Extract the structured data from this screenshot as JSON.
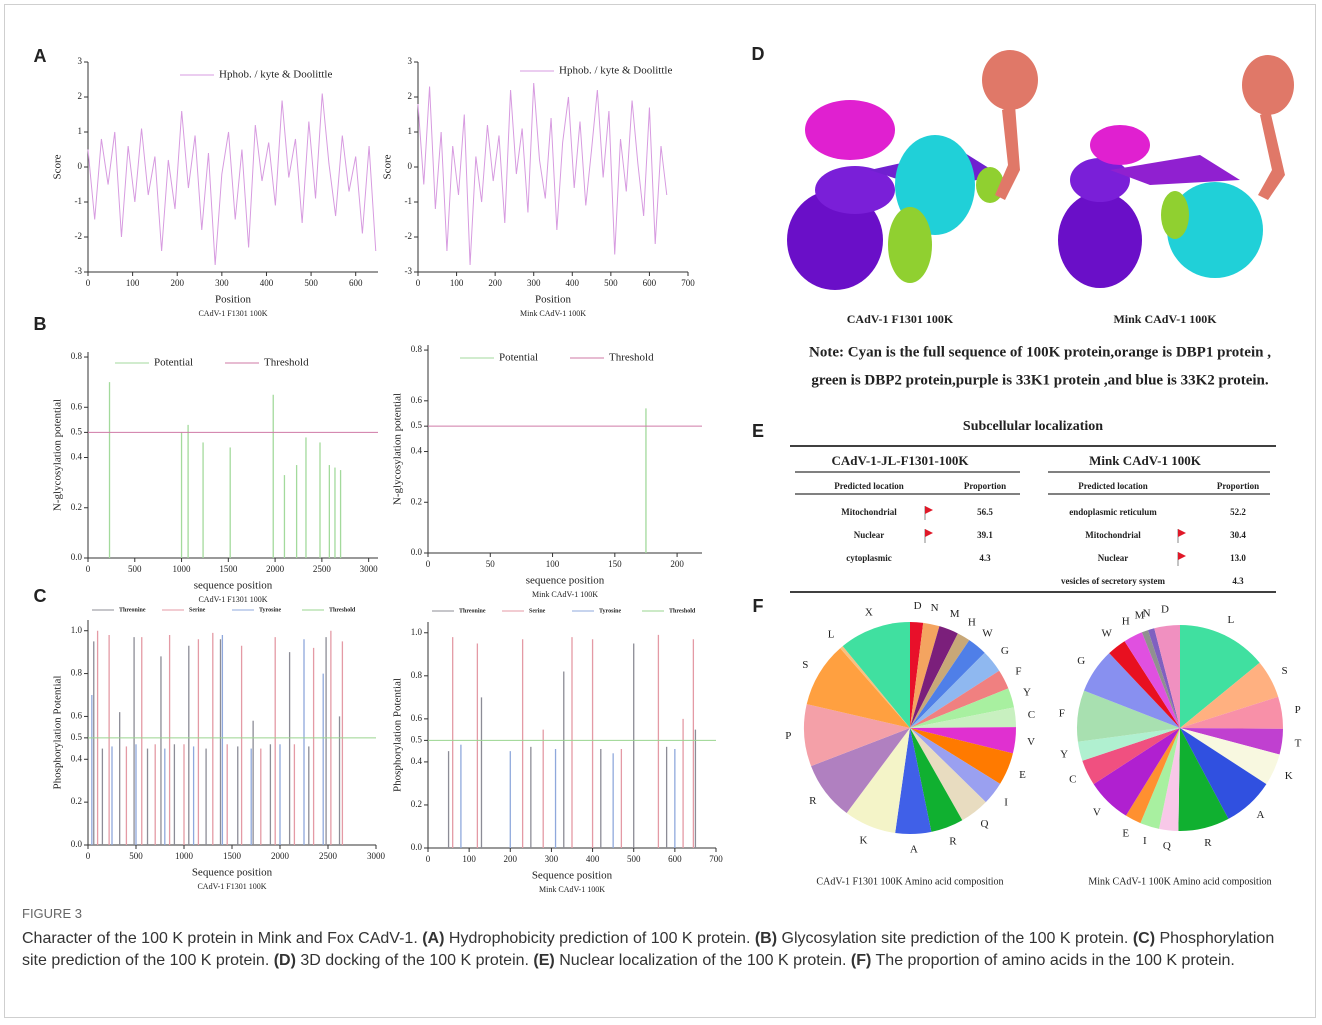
{
  "panel_labels": [
    "A",
    "B",
    "C",
    "D",
    "E",
    "F"
  ],
  "chart_data": [
    {
      "type": "line",
      "ylabel": "Score",
      "xlabel": "Position",
      "subtitle": "CAdV-1 F1301 100K",
      "xlim": [
        0,
        650
      ],
      "xticks": [
        0,
        100,
        200,
        300,
        400,
        500,
        600
      ],
      "ylim": [
        -3,
        3
      ],
      "yticks": [
        -3,
        -2,
        -1,
        0,
        1,
        2,
        3
      ],
      "x": [
        0,
        15,
        30,
        45,
        60,
        75,
        90,
        105,
        120,
        135,
        150,
        165,
        180,
        195,
        210,
        225,
        240,
        255,
        270,
        285,
        300,
        315,
        330,
        345,
        360,
        375,
        390,
        405,
        420,
        435,
        450,
        465,
        480,
        495,
        510,
        525,
        540,
        555,
        570,
        585,
        600,
        615,
        630,
        645
      ],
      "series": [
        {
          "name": "Hphob. / kyte & Doolittle",
          "color": "#d79be0",
          "values": [
            0.5,
            -1.5,
            0.8,
            -0.5,
            1.0,
            -2.0,
            0.6,
            -1.0,
            1.1,
            -0.8,
            0.3,
            -2.4,
            0.2,
            -1.2,
            1.6,
            -0.6,
            0.9,
            -1.8,
            0.4,
            -2.8,
            -0.2,
            1.0,
            -1.5,
            0.5,
            -2.3,
            1.2,
            -0.4,
            0.7,
            -1.1,
            1.9,
            -0.3,
            0.8,
            -1.6,
            1.3,
            -0.9,
            2.1,
            0.1,
            -1.4,
            0.9,
            -0.7,
            0.3,
            -1.9,
            0.6,
            -2.4
          ]
        }
      ]
    },
    {
      "type": "line",
      "ylabel": "Score",
      "xlabel": "Position",
      "subtitle": "Mink CAdV-1 100K",
      "xlim": [
        0,
        700
      ],
      "xticks": [
        0,
        100,
        200,
        300,
        400,
        500,
        600,
        700
      ],
      "ylim": [
        -3,
        3
      ],
      "yticks": [
        -3,
        -2,
        -1,
        0,
        1,
        2,
        3
      ],
      "x": [
        0,
        15,
        30,
        45,
        60,
        75,
        90,
        105,
        120,
        135,
        150,
        165,
        180,
        195,
        210,
        225,
        240,
        255,
        270,
        285,
        300,
        315,
        330,
        345,
        360,
        375,
        390,
        405,
        420,
        435,
        450,
        465,
        480,
        495,
        510,
        525,
        540,
        555,
        570,
        585,
        600,
        615,
        630,
        645
      ],
      "series": [
        {
          "name": "Hphob. / kyte & Doolittle",
          "color": "#d79be0",
          "values": [
            1.8,
            -0.5,
            2.3,
            -1.2,
            1.0,
            -2.4,
            0.6,
            -0.8,
            1.5,
            -2.8,
            0.3,
            -1.0,
            1.2,
            -0.4,
            0.9,
            -1.6,
            2.2,
            -0.2,
            1.1,
            -1.3,
            2.4,
            0.2,
            -0.9,
            1.4,
            -1.8,
            0.7,
            2.0,
            -0.6,
            1.3,
            -1.1,
            0.5,
            2.2,
            -0.3,
            1.6,
            -2.5,
            0.8,
            -0.7,
            1.9,
            0.1,
            -1.4,
            1.7,
            -2.2,
            0.6,
            -0.8
          ]
        }
      ]
    },
    {
      "type": "bar",
      "ylabel": "N-glycosylation potential",
      "xlabel": "sequence position",
      "subtitle": "CAdV-1 F1301 100K",
      "xlim": [
        0,
        3100
      ],
      "xticks": [
        0,
        500,
        1000,
        1500,
        2000,
        2500,
        3000
      ],
      "ylim": [
        0,
        0.82
      ],
      "yticks": [
        {
          "value": 0,
          "label": "0.0"
        },
        0.2,
        0.4,
        0.5,
        0.6,
        0.8
      ],
      "series": [
        {
          "name": "Potential",
          "color": "#a3da9c",
          "x": [
            230,
            1000,
            1070,
            1230,
            1520,
            1980,
            2100,
            2230,
            2330,
            2480,
            2580,
            2640,
            2700
          ],
          "values": [
            0.7,
            0.5,
            0.53,
            0.46,
            0.44,
            0.65,
            0.33,
            0.37,
            0.48,
            0.46,
            0.37,
            0.36,
            0.35
          ]
        }
      ],
      "threshold": {
        "name": "Threshold",
        "color": "#cf7aa6",
        "value": 0.5
      }
    },
    {
      "type": "bar",
      "ylabel": "N-glycosylation potential",
      "xlabel": "sequence position",
      "subtitle": "Mink CAdV-1 100K",
      "xlim": [
        0,
        220
      ],
      "xticks": [
        0,
        50,
        100,
        150,
        200
      ],
      "ylim": [
        0,
        0.82
      ],
      "yticks": [
        {
          "value": 0,
          "label": "0.0"
        },
        0.2,
        0.4,
        0.5,
        0.6,
        0.8
      ],
      "series": [
        {
          "name": "Potential",
          "color": "#a3da9c",
          "x": [
            175
          ],
          "values": [
            0.57
          ]
        }
      ],
      "threshold": {
        "name": "Threshold",
        "color": "#cf7aa6",
        "value": 0.5
      }
    },
    {
      "type": "bar",
      "ylabel": "Phosphorylation Potential",
      "xlabel": "Sequence position",
      "subtitle": "CAdV-1 F1301 100K",
      "xlim": [
        0,
        3000
      ],
      "xticks": [
        0,
        500,
        1000,
        1500,
        2000,
        2500,
        3000
      ],
      "ylim": [
        0,
        1.05
      ],
      "yticks": [
        {
          "value": 0,
          "label": "0.0"
        },
        0.2,
        0.4,
        0.5,
        0.6,
        0.8,
        {
          "value": 1,
          "label": "1.0"
        }
      ],
      "series": [
        {
          "name": "Threonine",
          "color": "#8c8c96",
          "x": [
            60,
            150,
            330,
            480,
            620,
            760,
            900,
            1050,
            1230,
            1380,
            1560,
            1720,
            1900,
            2100,
            2300,
            2480,
            2620
          ],
          "values": [
            0.95,
            0.45,
            0.62,
            0.97,
            0.45,
            0.88,
            0.47,
            0.93,
            0.45,
            0.96,
            0.46,
            0.58,
            0.47,
            0.9,
            0.46,
            0.97,
            0.6
          ]
        },
        {
          "name": "Serine",
          "color": "#e49aa5",
          "x": [
            100,
            220,
            400,
            560,
            700,
            850,
            1000,
            1150,
            1300,
            1450,
            1600,
            1800,
            1950,
            2150,
            2350,
            2530,
            2650
          ],
          "values": [
            1.0,
            0.98,
            0.46,
            0.97,
            0.47,
            0.98,
            0.47,
            0.96,
            0.99,
            0.47,
            0.93,
            0.45,
            0.97,
            0.47,
            0.92,
            1.0,
            0.95
          ]
        },
        {
          "name": "Tyrosine",
          "color": "#8fa8dc",
          "x": [
            40,
            250,
            500,
            800,
            1100,
            1400,
            1700,
            2000,
            2250,
            2450
          ],
          "values": [
            0.7,
            0.46,
            0.47,
            0.45,
            0.46,
            0.98,
            0.45,
            0.47,
            0.96,
            0.8
          ]
        }
      ],
      "threshold": {
        "name": "Threshold",
        "color": "#9ad48f",
        "value": 0.5
      }
    },
    {
      "type": "bar",
      "ylabel": "Phosphorylation Potential",
      "xlabel": "Sequence position",
      "subtitle": "Mink CAdV-1 100K",
      "xlim": [
        0,
        700
      ],
      "xticks": [
        0,
        100,
        200,
        300,
        400,
        500,
        600,
        700
      ],
      "ylim": [
        0,
        1.05
      ],
      "yticks": [
        {
          "value": 0,
          "label": "0.0"
        },
        0.2,
        0.4,
        0.5,
        0.6,
        0.8,
        {
          "value": 1,
          "label": "1.0"
        }
      ],
      "series": [
        {
          "name": "Threonine",
          "color": "#8c8c96",
          "x": [
            50,
            130,
            250,
            330,
            420,
            500,
            580,
            650
          ],
          "values": [
            0.45,
            0.7,
            0.47,
            0.82,
            0.46,
            0.95,
            0.47,
            0.55
          ]
        },
        {
          "name": "Serine",
          "color": "#e49aa5",
          "x": [
            60,
            120,
            230,
            280,
            350,
            400,
            470,
            560,
            620,
            645
          ],
          "values": [
            0.98,
            0.95,
            0.97,
            0.55,
            0.98,
            0.97,
            0.46,
            0.99,
            0.6,
            0.97
          ]
        },
        {
          "name": "Tyrosine",
          "color": "#8fa8dc",
          "x": [
            80,
            200,
            310,
            450,
            600
          ],
          "values": [
            0.48,
            0.45,
            0.46,
            0.44,
            0.46
          ]
        }
      ],
      "threshold": {
        "name": "Threshold",
        "color": "#9ad48f",
        "value": 0.5
      }
    },
    {
      "type": "pie",
      "subtitle": "CAdV-1 F1301 100K Amino acid composition",
      "categories": [
        "D",
        "N",
        "M",
        "H",
        "W",
        "G",
        "F",
        "Y",
        "C",
        "V",
        "E",
        "I",
        "Q",
        "R",
        "A",
        "K",
        "R",
        "P",
        "S",
        "L",
        "X"
      ],
      "values": [
        2,
        2.5,
        3,
        2,
        3,
        3.5,
        3,
        3,
        3,
        4,
        5,
        3.5,
        4.5,
        5,
        5.5,
        8,
        9,
        9.5,
        10,
        0.5,
        11
      ],
      "colors": [
        "#e8102a",
        "#f4a460",
        "#7b1f7b",
        "#c8a878",
        "#4f7fe8",
        "#8fb8f0",
        "#f08080",
        "#a8f0a0",
        "#c8f0c0",
        "#e030d0",
        "#ff7a00",
        "#9aa0f0",
        "#e8dcc0",
        "#10b030",
        "#4060e8",
        "#f4f4c8",
        "#b080c0",
        "#f4a0a8",
        "#ffa040",
        "#f8c080",
        "#40e0a0"
      ]
    },
    {
      "type": "pie",
      "subtitle": "Mink CAdV-1 100K Amino acid composition",
      "categories": [
        "L",
        "S",
        "P",
        "T",
        "K",
        "A",
        "R",
        "Q",
        "I",
        "E",
        "V",
        "C",
        "Y",
        "F",
        "G",
        "W",
        "H",
        "M",
        "N",
        "D"
      ],
      "values": [
        14,
        6,
        5,
        4,
        5,
        8,
        8,
        3,
        3,
        2.5,
        7,
        4,
        3,
        8,
        7,
        3,
        3,
        1,
        1,
        4
      ],
      "colors": [
        "#40e0a0",
        "#ffb080",
        "#f890a8",
        "#c040d0",
        "#f8f8e0",
        "#3050e0",
        "#10b030",
        "#f8c8e8",
        "#a8f0a0",
        "#ff9030",
        "#b020d0",
        "#f05080",
        "#b0f0d0",
        "#a8e0b0",
        "#8890f0",
        "#e81020",
        "#e050e0",
        "#909090",
        "#8060c0",
        "#f090c0"
      ]
    }
  ],
  "docking": {
    "labels": [
      "CAdV-1 F1301 100K",
      "Mink CAdV-1 100K"
    ],
    "note": [
      "Note: Cyan is the full sequence of 100K protein,orange is DBP1 protein ,",
      "green is DBP2 protein,purple is 33K1 protein ,and blue is 33K2 protein."
    ]
  },
  "table": {
    "title": "Subcellular localization",
    "groups": [
      {
        "name": "CAdV-1-JL-F1301-100K",
        "columns": [
          "Predicted location",
          "Proportion"
        ],
        "rows": [
          {
            "location": "Mitochondrial",
            "proportion": "56.5",
            "flag": true
          },
          {
            "location": "Nuclear",
            "proportion": "39.1",
            "flag": true
          },
          {
            "location": "cytoplasmic",
            "proportion": "4.3",
            "flag": false
          }
        ]
      },
      {
        "name": "Mink CAdV-1 100K",
        "columns": [
          "Predicted location",
          "Proportion"
        ],
        "rows": [
          {
            "location": "endoplasmic reticulum",
            "proportion": "52.2",
            "flag": false
          },
          {
            "location": "Mitochondrial",
            "proportion": "30.4",
            "flag": true
          },
          {
            "location": "Nuclear",
            "proportion": "13.0",
            "flag": true
          },
          {
            "location": "vesicles of secretory system",
            "proportion": "4.3",
            "flag": false
          }
        ]
      }
    ]
  },
  "caption": {
    "label": "FIGURE 3",
    "parts": [
      {
        "text": "Character of the 100 K protein in Mink and Fox CAdV-1. "
      },
      {
        "text": "(A)",
        "bold": true
      },
      {
        "text": " Hydrophobicity prediction of 100 K protein. "
      },
      {
        "text": "(B)",
        "bold": true
      },
      {
        "text": " Glycosylation site prediction of the 100 K protein. "
      },
      {
        "text": "(C)",
        "bold": true
      },
      {
        "text": " Phosphorylation site prediction of the 100 K protein. "
      },
      {
        "text": "(D)",
        "bold": true
      },
      {
        "text": " 3D docking of the 100 K protein. "
      },
      {
        "text": "(E)",
        "bold": true
      },
      {
        "text": " Nuclear localization of the 100 K protein. "
      },
      {
        "text": "(F)",
        "bold": true
      },
      {
        "text": " The proportion of amino acids in the 100 K protein."
      }
    ]
  }
}
